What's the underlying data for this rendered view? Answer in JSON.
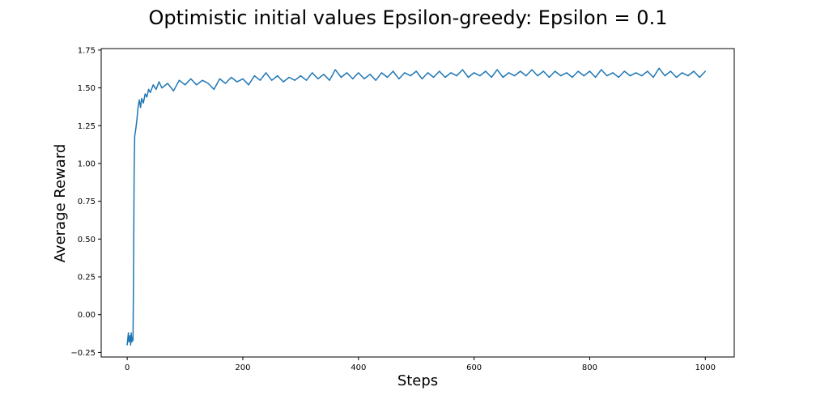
{
  "chart_data": {
    "type": "line",
    "title": "Optimistic initial values Epsilon-greedy: Epsilon = 0.1",
    "xlabel": "Steps",
    "ylabel": "Average Reward",
    "xlim": [
      -45,
      1050
    ],
    "ylim": [
      -0.28,
      1.76
    ],
    "xticks": [
      0,
      200,
      400,
      600,
      800,
      1000
    ],
    "yticks": [
      -0.25,
      0.0,
      0.25,
      0.5,
      0.75,
      1.0,
      1.25,
      1.5,
      1.75
    ],
    "ytick_labels": [
      "−0.25",
      "0.00",
      "0.25",
      "0.50",
      "0.75",
      "1.00",
      "1.25",
      "1.50",
      "1.75"
    ],
    "grid": false,
    "series": [
      {
        "color": "#1f77b4",
        "points": [
          [
            0,
            -0.2
          ],
          [
            2,
            -0.12
          ],
          [
            3,
            -0.18
          ],
          [
            5,
            -0.14
          ],
          [
            6,
            -0.2
          ],
          [
            7,
            -0.12
          ],
          [
            8,
            -0.18
          ],
          [
            9,
            -0.15
          ],
          [
            10,
            -0.17
          ],
          [
            11,
            0.3
          ],
          [
            12,
            0.95
          ],
          [
            13,
            1.18
          ],
          [
            15,
            1.23
          ],
          [
            17,
            1.3
          ],
          [
            19,
            1.38
          ],
          [
            21,
            1.42
          ],
          [
            23,
            1.37
          ],
          [
            25,
            1.43
          ],
          [
            28,
            1.4
          ],
          [
            31,
            1.46
          ],
          [
            34,
            1.44
          ],
          [
            37,
            1.49
          ],
          [
            40,
            1.47
          ],
          [
            45,
            1.52
          ],
          [
            50,
            1.49
          ],
          [
            55,
            1.54
          ],
          [
            60,
            1.5
          ],
          [
            70,
            1.53
          ],
          [
            80,
            1.48
          ],
          [
            90,
            1.55
          ],
          [
            100,
            1.52
          ],
          [
            110,
            1.56
          ],
          [
            120,
            1.52
          ],
          [
            130,
            1.55
          ],
          [
            140,
            1.53
          ],
          [
            150,
            1.49
          ],
          [
            160,
            1.56
          ],
          [
            170,
            1.53
          ],
          [
            180,
            1.57
          ],
          [
            190,
            1.54
          ],
          [
            200,
            1.56
          ],
          [
            210,
            1.52
          ],
          [
            220,
            1.58
          ],
          [
            230,
            1.55
          ],
          [
            240,
            1.6
          ],
          [
            250,
            1.55
          ],
          [
            260,
            1.58
          ],
          [
            270,
            1.54
          ],
          [
            280,
            1.57
          ],
          [
            290,
            1.55
          ],
          [
            300,
            1.58
          ],
          [
            310,
            1.55
          ],
          [
            320,
            1.6
          ],
          [
            330,
            1.56
          ],
          [
            340,
            1.59
          ],
          [
            350,
            1.55
          ],
          [
            360,
            1.62
          ],
          [
            370,
            1.57
          ],
          [
            380,
            1.6
          ],
          [
            390,
            1.56
          ],
          [
            400,
            1.6
          ],
          [
            410,
            1.56
          ],
          [
            420,
            1.59
          ],
          [
            430,
            1.55
          ],
          [
            440,
            1.6
          ],
          [
            450,
            1.57
          ],
          [
            460,
            1.61
          ],
          [
            470,
            1.56
          ],
          [
            480,
            1.6
          ],
          [
            490,
            1.58
          ],
          [
            500,
            1.61
          ],
          [
            510,
            1.56
          ],
          [
            520,
            1.6
          ],
          [
            530,
            1.57
          ],
          [
            540,
            1.61
          ],
          [
            550,
            1.57
          ],
          [
            560,
            1.6
          ],
          [
            570,
            1.58
          ],
          [
            580,
            1.62
          ],
          [
            590,
            1.57
          ],
          [
            600,
            1.6
          ],
          [
            610,
            1.58
          ],
          [
            620,
            1.61
          ],
          [
            630,
            1.57
          ],
          [
            640,
            1.62
          ],
          [
            650,
            1.57
          ],
          [
            660,
            1.6
          ],
          [
            670,
            1.58
          ],
          [
            680,
            1.61
          ],
          [
            690,
            1.58
          ],
          [
            700,
            1.62
          ],
          [
            710,
            1.58
          ],
          [
            720,
            1.61
          ],
          [
            730,
            1.57
          ],
          [
            740,
            1.61
          ],
          [
            750,
            1.58
          ],
          [
            760,
            1.6
          ],
          [
            770,
            1.57
          ],
          [
            780,
            1.61
          ],
          [
            790,
            1.58
          ],
          [
            800,
            1.61
          ],
          [
            810,
            1.57
          ],
          [
            820,
            1.62
          ],
          [
            830,
            1.58
          ],
          [
            840,
            1.6
          ],
          [
            850,
            1.57
          ],
          [
            860,
            1.61
          ],
          [
            870,
            1.58
          ],
          [
            880,
            1.6
          ],
          [
            890,
            1.58
          ],
          [
            900,
            1.61
          ],
          [
            910,
            1.57
          ],
          [
            920,
            1.63
          ],
          [
            930,
            1.58
          ],
          [
            940,
            1.61
          ],
          [
            950,
            1.57
          ],
          [
            960,
            1.6
          ],
          [
            970,
            1.58
          ],
          [
            980,
            1.61
          ],
          [
            990,
            1.57
          ],
          [
            1000,
            1.61
          ]
        ]
      }
    ]
  }
}
